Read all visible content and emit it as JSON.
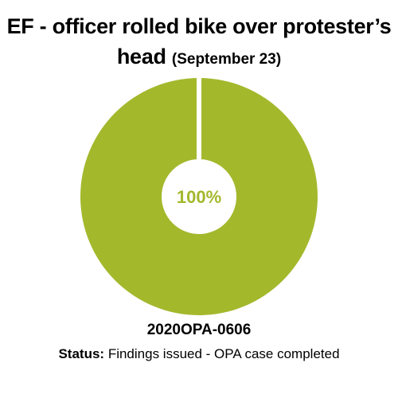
{
  "title": {
    "main_line1": "EF - officer rolled bike over protester’s",
    "main_line2": "head",
    "date": "(September 23)"
  },
  "case_id": "2020OPA-0606",
  "status": {
    "label": "Status:",
    "value": "Findings issued - OPA case completed"
  },
  "colors": {
    "slice": "#a4b82c",
    "center_text": "#a4b82c",
    "background": "#ffffff"
  },
  "chart_data": {
    "type": "pie",
    "style": "donut",
    "slices": [
      {
        "value": 100,
        "label": "100%"
      }
    ],
    "center_label": "100%"
  }
}
